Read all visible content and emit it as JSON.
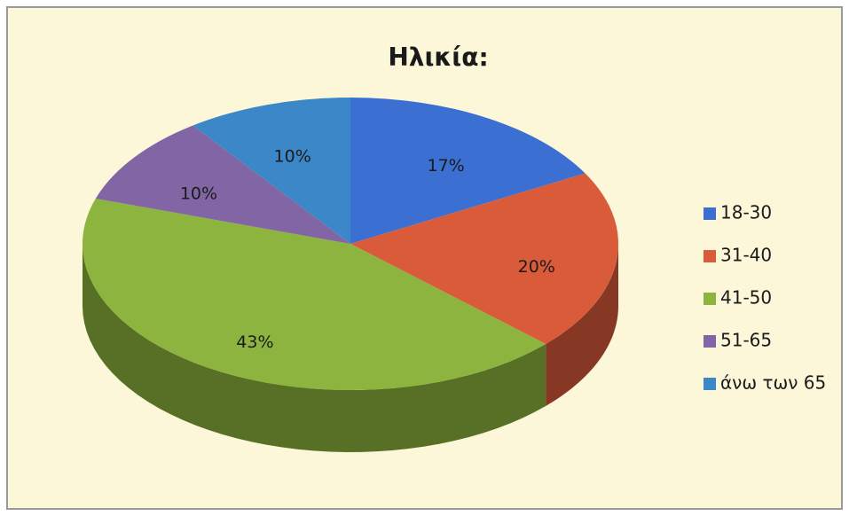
{
  "chart_data": {
    "type": "pie3d",
    "title": "Ηλικία:",
    "categories": [
      "18-30",
      "31-40",
      "41-50",
      "51-65",
      "άνω των 65"
    ],
    "values": [
      17,
      20,
      43,
      10,
      10
    ],
    "value_labels": [
      "17%",
      "20%",
      "43%",
      "10%",
      "10%"
    ],
    "colors": [
      "#3c6fd2",
      "#d95b3a",
      "#8db43e",
      "#8165a5",
      "#3b87c8"
    ],
    "legend": "right"
  }
}
